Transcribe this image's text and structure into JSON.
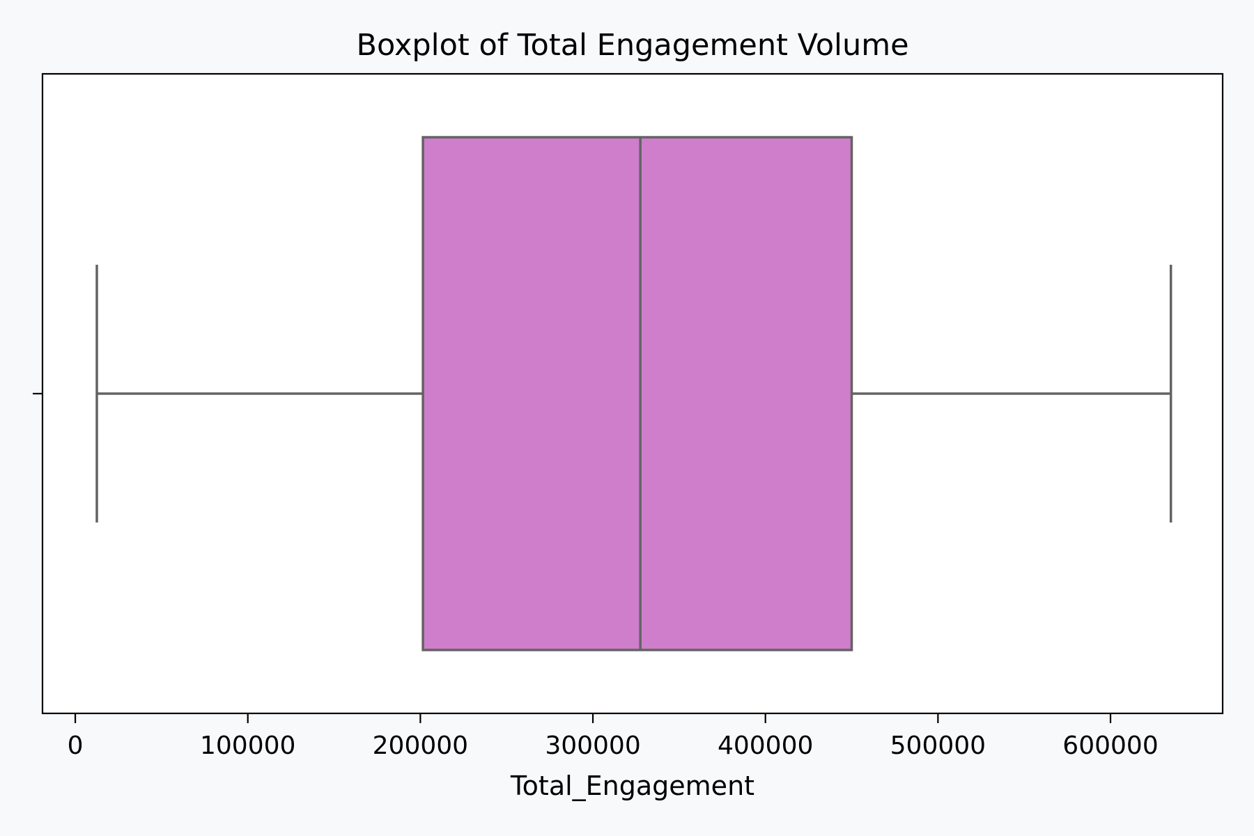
{
  "chart_data": {
    "type": "boxplot",
    "title": "Boxplot of Total Engagement Volume",
    "xlabel": "Total_Engagement",
    "ylabel": "",
    "orientation": "horizontal",
    "xlim": [
      -19000,
      665000
    ],
    "xticks": [
      0,
      100000,
      200000,
      300000,
      400000,
      500000,
      600000
    ],
    "xtick_labels": [
      "0",
      "100000",
      "200000",
      "300000",
      "400000",
      "500000",
      "600000"
    ],
    "boxes": [
      {
        "whisker_low": 12500,
        "q1": 201500,
        "median": 327500,
        "q3": 450000,
        "whisker_high": 635000
      }
    ],
    "grid": false,
    "colors": {
      "box_fill": "#ce7eca",
      "box_edge": "#636363",
      "axes": "#000000",
      "background": "#f8f9fb",
      "plot_bg": "#ffffff"
    }
  }
}
